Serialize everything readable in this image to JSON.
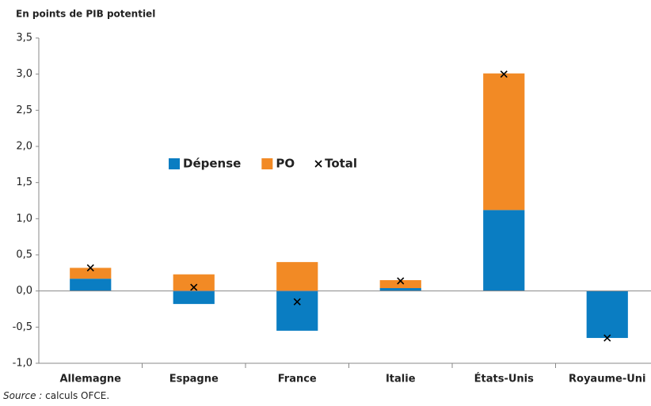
{
  "chart_data": {
    "type": "bar",
    "stacked": true,
    "title": "En points de PIB potentiel",
    "categories": [
      "Allemagne",
      "Espagne",
      "France",
      "Italie",
      "États-Unis",
      "Royaume-Uni"
    ],
    "series": [
      {
        "name": "Dépense",
        "color": "#0a7dc2",
        "values": [
          0.17,
          -0.18,
          -0.55,
          0.04,
          1.12,
          -0.65
        ]
      },
      {
        "name": "PO",
        "color": "#f28a25",
        "values": [
          0.15,
          0.23,
          0.4,
          0.11,
          1.89,
          0
        ]
      },
      {
        "name": "Total",
        "color": "#000000",
        "marker": "x",
        "values": [
          0.32,
          0.05,
          -0.15,
          0.14,
          3.0,
          -0.65
        ]
      }
    ],
    "ylim": [
      -1.0,
      3.5
    ],
    "yticks": [
      {
        "value": -1.0,
        "label": "-1,0"
      },
      {
        "value": -0.5,
        "label": "-0,5"
      },
      {
        "value": 0,
        "label": "0,0"
      },
      {
        "value": 0.5,
        "label": "0,5"
      },
      {
        "value": 1.0,
        "label": "1,0"
      },
      {
        "value": 1.5,
        "label": "1,5"
      },
      {
        "value": 2.0,
        "label": "2,0"
      },
      {
        "value": 2.5,
        "label": "2,5"
      },
      {
        "value": 3.0,
        "label": "3,0"
      },
      {
        "value": 3.5,
        "label": "3,5"
      }
    ],
    "grid": false,
    "source_label": "Source :",
    "source_text": "calculs OFCE."
  }
}
